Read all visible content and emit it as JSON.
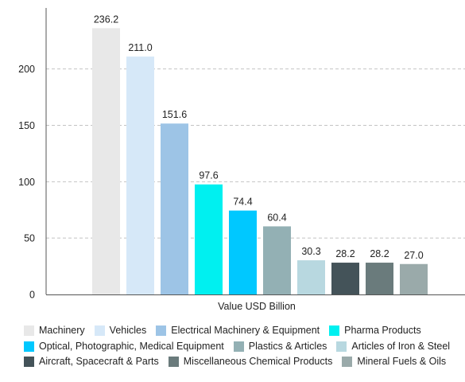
{
  "chart_data": {
    "type": "bar",
    "title": "",
    "xlabel": "Value USD Billion",
    "ylabel": "",
    "ylim": [
      0,
      240
    ],
    "yticks": [
      0,
      50,
      100,
      150,
      200
    ],
    "grid": true,
    "legend_position": "bottom",
    "categories": [
      "Machinery",
      "Vehicles",
      "Electrical Machinery & Equipment",
      "Pharma Products",
      "Optical, Photographic, Medical Equipment",
      "Plastics & Articles",
      "Articles of Iron & Steel",
      "Aircraft, Spacecraft & Parts",
      "Miscellaneous Chemical Products",
      "Mineral Fuels & Oils"
    ],
    "values": [
      236.2,
      211.0,
      151.6,
      97.6,
      74.4,
      60.4,
      30.3,
      28.2,
      28.2,
      27.0
    ],
    "value_labels": [
      "236.2",
      "211.0",
      "151.6",
      "97.6",
      "74.4",
      "60.4",
      "30.3",
      "28.2",
      "28.2",
      "27.0"
    ],
    "colors": [
      "#e8e8e8",
      "#d6e8f8",
      "#9dc4e6",
      "#00f0f0",
      "#00c8ff",
      "#93b0b4",
      "#b8d8e0",
      "#445359",
      "#6a7b7c",
      "#9aaaaa"
    ]
  },
  "legend_rows": [
    [
      0,
      1,
      2,
      3
    ],
    [
      4,
      5,
      6
    ],
    [
      7,
      8,
      9
    ]
  ]
}
